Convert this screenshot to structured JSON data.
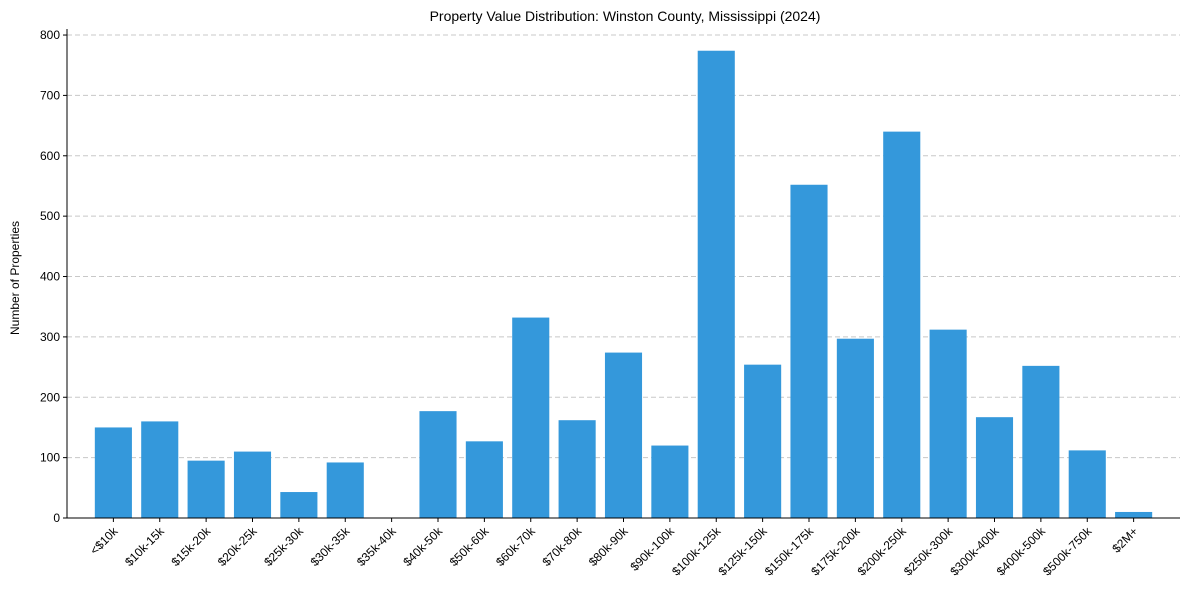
{
  "chart_data": {
    "type": "bar",
    "title": "Property Value Distribution: Winston County, Mississippi (2024)",
    "xlabel": "",
    "ylabel": "Number of Properties",
    "ylim": [
      0,
      810
    ],
    "yticks": [
      0,
      100,
      200,
      300,
      400,
      500,
      600,
      700,
      800
    ],
    "grid": true,
    "bar_color": "#3498db",
    "categories": [
      "<$10k",
      "$10k-15k",
      "$15k-20k",
      "$20k-25k",
      "$25k-30k",
      "$30k-35k",
      "$35k-40k",
      "$40k-50k",
      "$50k-60k",
      "$60k-70k",
      "$70k-80k",
      "$80k-90k",
      "$90k-100k",
      "$100k-125k",
      "$125k-150k",
      "$150k-175k",
      "$175k-200k",
      "$200k-250k",
      "$250k-300k",
      "$300k-400k",
      "$400k-500k",
      "$500k-750k",
      "$2M+"
    ],
    "values": [
      150,
      160,
      95,
      110,
      43,
      92,
      0,
      177,
      127,
      332,
      162,
      274,
      120,
      774,
      254,
      552,
      297,
      640,
      312,
      167,
      252,
      112,
      10
    ]
  }
}
